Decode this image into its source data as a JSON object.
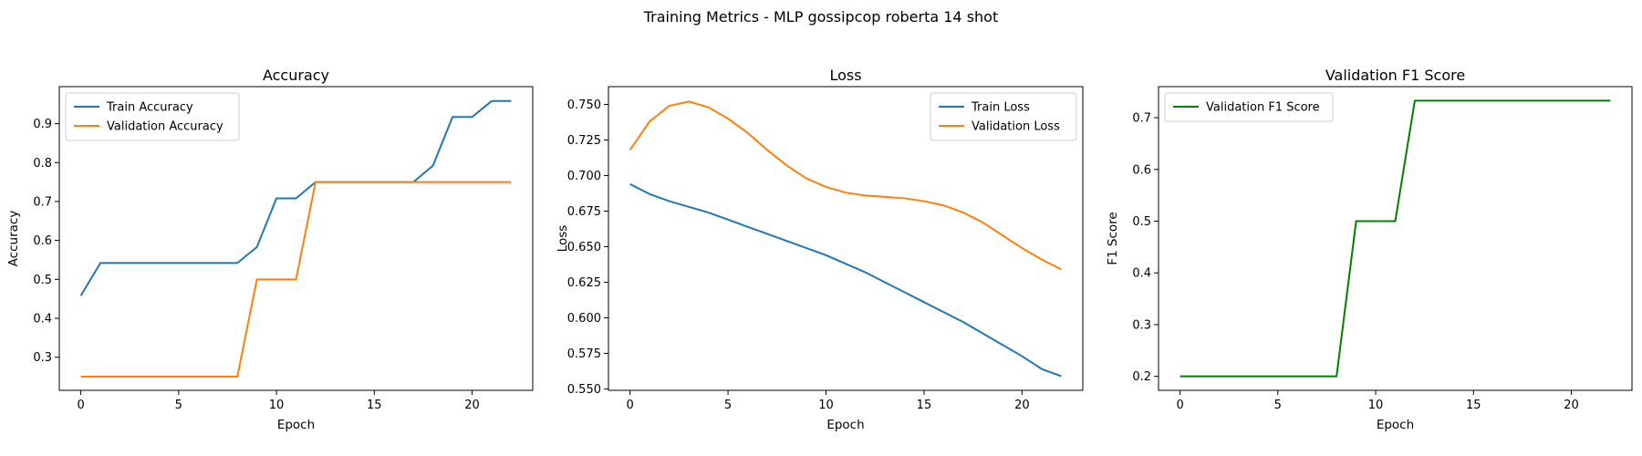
{
  "figure": {
    "suptitle": "Training Metrics - MLP gossipcop roberta 14 shot"
  },
  "chart_data": [
    {
      "type": "line",
      "title": "Accuracy",
      "xlabel": "Epoch",
      "ylabel": "Accuracy",
      "xlim": [
        -1.1,
        23.1
      ],
      "ylim": [
        0.215,
        0.995
      ],
      "xticks": [
        0,
        5,
        10,
        15,
        20
      ],
      "yticks": [
        0.3,
        0.4,
        0.5,
        0.6,
        0.7,
        0.8,
        0.9
      ],
      "ytick_labels": [
        "0.3",
        "0.4",
        "0.5",
        "0.6",
        "0.7",
        "0.8",
        "0.9"
      ],
      "legend": "upper-left",
      "x": [
        0,
        1,
        2,
        3,
        4,
        5,
        6,
        7,
        8,
        9,
        10,
        11,
        12,
        13,
        14,
        15,
        16,
        17,
        18,
        19,
        20,
        21,
        22
      ],
      "series": [
        {
          "name": "Train Accuracy",
          "color": "#1f77b4",
          "values": [
            0.458,
            0.542,
            0.542,
            0.542,
            0.542,
            0.542,
            0.542,
            0.542,
            0.542,
            0.583,
            0.708,
            0.708,
            0.75,
            0.75,
            0.75,
            0.75,
            0.75,
            0.75,
            0.792,
            0.917,
            0.917,
            0.958,
            0.958
          ]
        },
        {
          "name": "Validation Accuracy",
          "color": "#ff7f0e",
          "values": [
            0.25,
            0.25,
            0.25,
            0.25,
            0.25,
            0.25,
            0.25,
            0.25,
            0.25,
            0.5,
            0.5,
            0.5,
            0.75,
            0.75,
            0.75,
            0.75,
            0.75,
            0.75,
            0.75,
            0.75,
            0.75,
            0.75,
            0.75
          ]
        }
      ]
    },
    {
      "type": "line",
      "title": "Loss",
      "xlabel": "Epoch",
      "ylabel": "Loss",
      "xlim": [
        -1.1,
        23.1
      ],
      "ylim": [
        0.549,
        0.7625
      ],
      "xticks": [
        0,
        5,
        10,
        15,
        20
      ],
      "yticks": [
        0.55,
        0.575,
        0.6,
        0.625,
        0.65,
        0.675,
        0.7,
        0.725,
        0.75
      ],
      "ytick_labels": [
        "0.550",
        "0.575",
        "0.600",
        "0.625",
        "0.650",
        "0.675",
        "0.700",
        "0.725",
        "0.750"
      ],
      "legend": "upper-right",
      "x": [
        0,
        1,
        2,
        3,
        4,
        5,
        6,
        7,
        8,
        9,
        10,
        11,
        12,
        13,
        14,
        15,
        16,
        17,
        18,
        19,
        20,
        21,
        22
      ],
      "series": [
        {
          "name": "Train Loss",
          "color": "#1f77b4",
          "values": [
            0.694,
            0.687,
            0.682,
            0.678,
            0.674,
            0.669,
            0.664,
            0.659,
            0.654,
            0.649,
            0.644,
            0.638,
            0.632,
            0.625,
            0.618,
            0.611,
            0.604,
            0.597,
            0.589,
            0.581,
            0.573,
            0.564,
            0.559
          ]
        },
        {
          "name": "Validation Loss",
          "color": "#ff7f0e",
          "values": [
            0.718,
            0.738,
            0.749,
            0.752,
            0.748,
            0.74,
            0.73,
            0.718,
            0.707,
            0.698,
            0.692,
            0.688,
            0.686,
            0.685,
            0.684,
            0.682,
            0.679,
            0.674,
            0.667,
            0.658,
            0.649,
            0.641,
            0.634
          ]
        }
      ]
    },
    {
      "type": "line",
      "title": "Validation F1 Score",
      "xlabel": "Epoch",
      "ylabel": "F1 Score",
      "xlim": [
        -1.1,
        23.1
      ],
      "ylim": [
        0.173,
        0.76
      ],
      "xticks": [
        0,
        5,
        10,
        15,
        20
      ],
      "yticks": [
        0.2,
        0.3,
        0.4,
        0.5,
        0.6,
        0.7
      ],
      "ytick_labels": [
        "0.2",
        "0.3",
        "0.4",
        "0.5",
        "0.6",
        "0.7"
      ],
      "legend": "upper-left",
      "x": [
        0,
        1,
        2,
        3,
        4,
        5,
        6,
        7,
        8,
        9,
        10,
        11,
        12,
        13,
        14,
        15,
        16,
        17,
        18,
        19,
        20,
        21,
        22
      ],
      "series": [
        {
          "name": "Validation F1 Score",
          "color": "#008000",
          "values": [
            0.2,
            0.2,
            0.2,
            0.2,
            0.2,
            0.2,
            0.2,
            0.2,
            0.2,
            0.5,
            0.5,
            0.5,
            0.733,
            0.733,
            0.733,
            0.733,
            0.733,
            0.733,
            0.733,
            0.733,
            0.733,
            0.733,
            0.733
          ]
        }
      ]
    }
  ]
}
